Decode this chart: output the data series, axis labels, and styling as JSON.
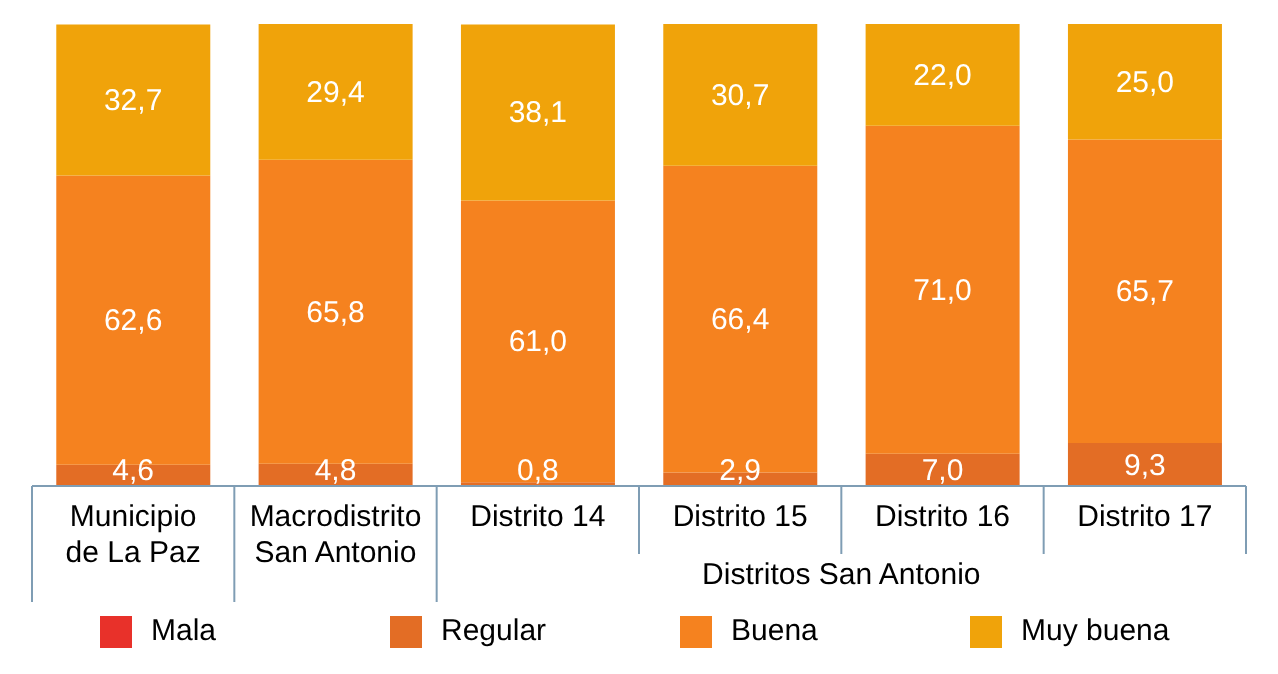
{
  "chart_data": {
    "type": "bar",
    "stacked": true,
    "categories": [
      "Municipio de La Paz",
      "Macrodistrito San Antonio",
      "Distrito 14",
      "Distrito 15",
      "Distrito 16",
      "Distrito 17"
    ],
    "xlabel": "Distritos San Antonio",
    "legend": "bottom",
    "series": [
      {
        "name": "Mala",
        "color": "#e8312a",
        "values": [
          null,
          null,
          null,
          null,
          null,
          null
        ]
      },
      {
        "name": "Regular",
        "color": "#e36d25",
        "values": [
          4.6,
          4.8,
          0.8,
          2.9,
          7.0,
          9.3
        ],
        "value_labels": [
          "4,6",
          "4,8",
          "0,8",
          "2,9",
          "7,0",
          "9,3"
        ]
      },
      {
        "name": "Buena",
        "color": "#f5821f",
        "values": [
          62.6,
          65.8,
          61.0,
          66.4,
          71.0,
          65.7
        ],
        "value_labels": [
          "62,6",
          "65,8",
          "61,0",
          "66,4",
          "71,0",
          "65,7"
        ]
      },
      {
        "name": "Muy buena",
        "color": "#f0a30a",
        "values": [
          32.7,
          29.4,
          38.1,
          30.7,
          22.0,
          25.0
        ],
        "value_labels": [
          "32,7",
          "29,4",
          "38,1",
          "30,7",
          "22,0",
          "25,0"
        ]
      }
    ]
  }
}
